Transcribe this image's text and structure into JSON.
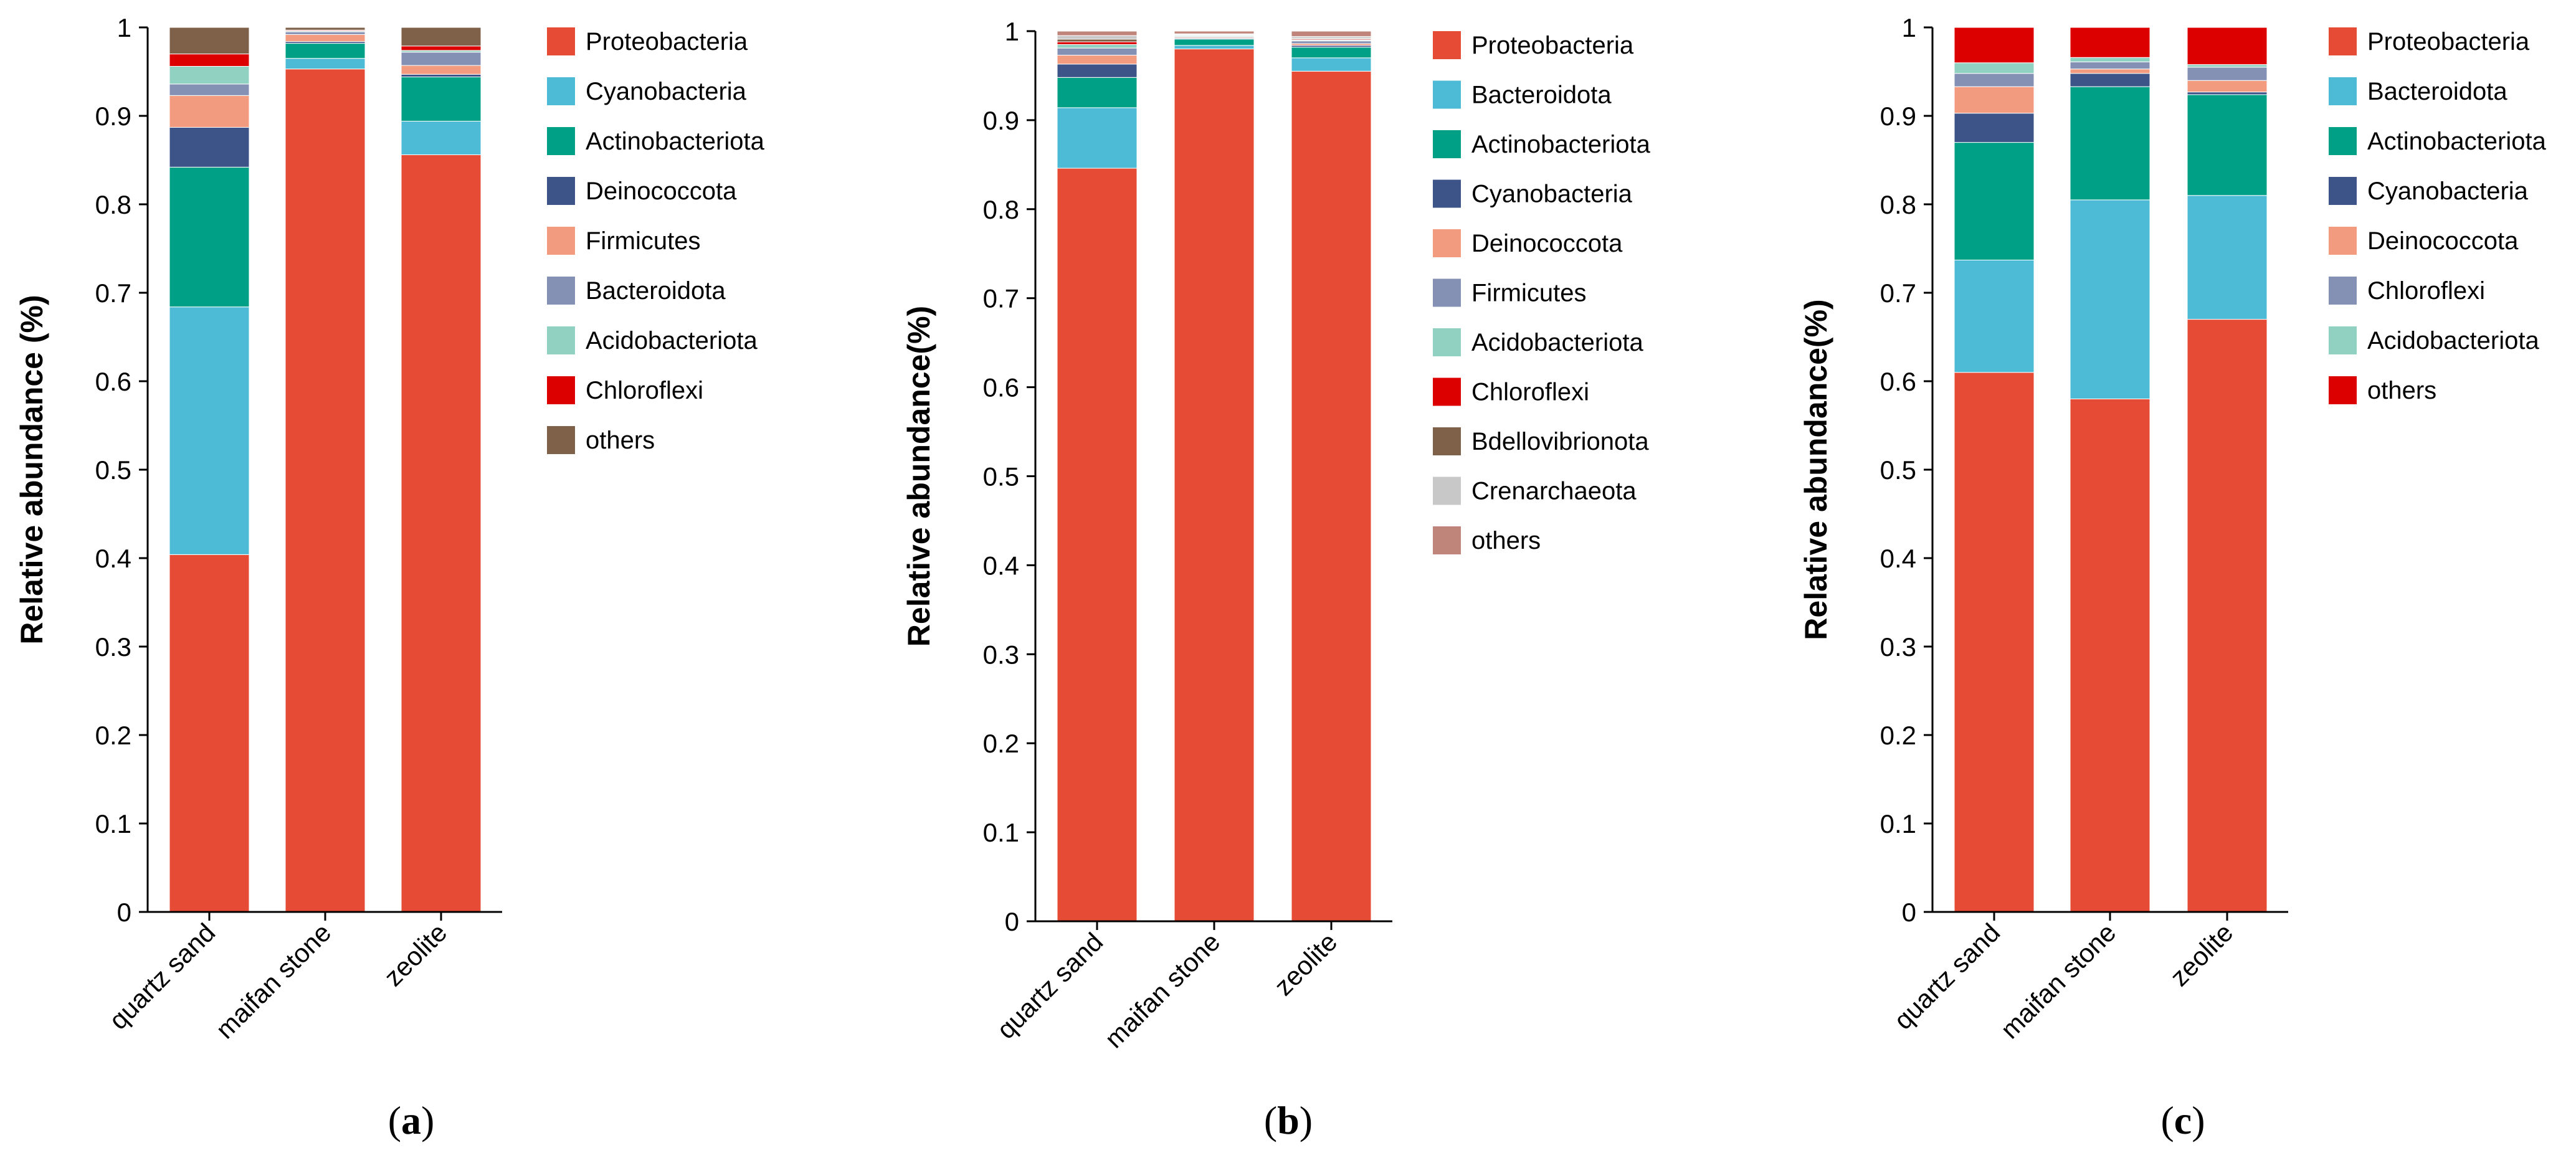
{
  "chart_data": [
    {
      "type": "bar",
      "stacked": true,
      "panel_label": "a",
      "ylabel": "Relative abundance (%)",
      "ylim": [
        0,
        1
      ],
      "yticks": [
        "0",
        "0.1",
        "0.2",
        "0.3",
        "0.4",
        "0.5",
        "0.6",
        "0.7",
        "0.8",
        "0.9",
        "1"
      ],
      "categories": [
        "quartz sand",
        "maifan stone",
        "zeolite"
      ],
      "series": [
        {
          "name": "Proteobacteria",
          "color": "#E64B35",
          "values": [
            0.404,
            0.953,
            0.856
          ]
        },
        {
          "name": "Cyanobacteria",
          "color": "#4DBBD5",
          "values": [
            0.28,
            0.012,
            0.038
          ]
        },
        {
          "name": "Actinobacteriota",
          "color": "#00A087",
          "values": [
            0.158,
            0.017,
            0.05
          ]
        },
        {
          "name": "Deinococcota",
          "color": "#3C5488",
          "values": [
            0.045,
            0.002,
            0.003
          ]
        },
        {
          "name": "Firmicutes",
          "color": "#F39B7F",
          "values": [
            0.036,
            0.008,
            0.01
          ]
        },
        {
          "name": "Bacteroidota",
          "color": "#8491B4",
          "values": [
            0.013,
            0.003,
            0.015
          ]
        },
        {
          "name": "Acidobacteriota",
          "color": "#91D1C2",
          "values": [
            0.02,
            0.001,
            0.002
          ]
        },
        {
          "name": "Chloroflexi",
          "color": "#DC0000",
          "values": [
            0.014,
            0.001,
            0.005
          ]
        },
        {
          "name": "others",
          "color": "#7E6148",
          "values": [
            0.03,
            0.003,
            0.021
          ]
        }
      ]
    },
    {
      "type": "bar",
      "stacked": true,
      "panel_label": "b",
      "ylabel": "Relative abundance(%)",
      "ylim": [
        0,
        1
      ],
      "yticks": [
        "0",
        "0.1",
        "0.2",
        "0.3",
        "0.4",
        "0.5",
        "0.6",
        "0.7",
        "0.8",
        "0.9",
        "1"
      ],
      "categories": [
        "quartz sand",
        "maifan stone",
        "zeolite"
      ],
      "series": [
        {
          "name": "Proteobacteria",
          "color": "#E64B35",
          "values": [
            0.846,
            0.98,
            0.955
          ]
        },
        {
          "name": "Bacteroidota",
          "color": "#4DBBD5",
          "values": [
            0.068,
            0.004,
            0.015
          ]
        },
        {
          "name": "Actinobacteriota",
          "color": "#00A087",
          "values": [
            0.034,
            0.007,
            0.012
          ]
        },
        {
          "name": "Cyanobacteria",
          "color": "#3C5488",
          "values": [
            0.015,
            0.001,
            0.002
          ]
        },
        {
          "name": "Deinococcota",
          "color": "#F39B7F",
          "values": [
            0.01,
            0.001,
            0.002
          ]
        },
        {
          "name": "Firmicutes",
          "color": "#8491B4",
          "values": [
            0.008,
            0.001,
            0.003
          ]
        },
        {
          "name": "Acidobacteriota",
          "color": "#91D1C2",
          "values": [
            0.004,
            0.001,
            0.001
          ]
        },
        {
          "name": "Chloroflexi",
          "color": "#DC0000",
          "values": [
            0.003,
            0.0005,
            0.001
          ]
        },
        {
          "name": "Bdellovibrionota",
          "color": "#7E6148",
          "values": [
            0.003,
            0.0005,
            0.001
          ]
        },
        {
          "name": "Crenarchaeota",
          "color": "#C8C8C8",
          "values": [
            0.004,
            0.001,
            0.002
          ]
        },
        {
          "name": "others",
          "color": "#C0857A",
          "values": [
            0.005,
            0.003,
            0.006
          ]
        }
      ]
    },
    {
      "type": "bar",
      "stacked": true,
      "panel_label": "c",
      "ylabel": "Relative abundance(%)",
      "ylim": [
        0,
        1
      ],
      "yticks": [
        "0",
        "0.1",
        "0.2",
        "0.3",
        "0.4",
        "0.5",
        "0.6",
        "0.7",
        "0.8",
        "0.9",
        "1"
      ],
      "categories": [
        "quartz sand",
        "maifan stone",
        "zeolite"
      ],
      "series": [
        {
          "name": "Proteobacteria",
          "color": "#E64B35",
          "values": [
            0.61,
            0.58,
            0.67
          ]
        },
        {
          "name": "Bacteroidota",
          "color": "#4DBBD5",
          "values": [
            0.127,
            0.225,
            0.14
          ]
        },
        {
          "name": "Actinobacteriota",
          "color": "#00A087",
          "values": [
            0.133,
            0.128,
            0.114
          ]
        },
        {
          "name": "Cyanobacteria",
          "color": "#3C5488",
          "values": [
            0.033,
            0.015,
            0.003
          ]
        },
        {
          "name": "Deinococcota",
          "color": "#F39B7F",
          "values": [
            0.03,
            0.005,
            0.013
          ]
        },
        {
          "name": "Chloroflexi",
          "color": "#8491B4",
          "values": [
            0.015,
            0.008,
            0.015
          ]
        },
        {
          "name": "Acidobacteriota",
          "color": "#91D1C2",
          "values": [
            0.012,
            0.005,
            0.003
          ]
        },
        {
          "name": "others",
          "color": "#DC0000",
          "values": [
            0.04,
            0.034,
            0.042
          ]
        }
      ]
    }
  ]
}
